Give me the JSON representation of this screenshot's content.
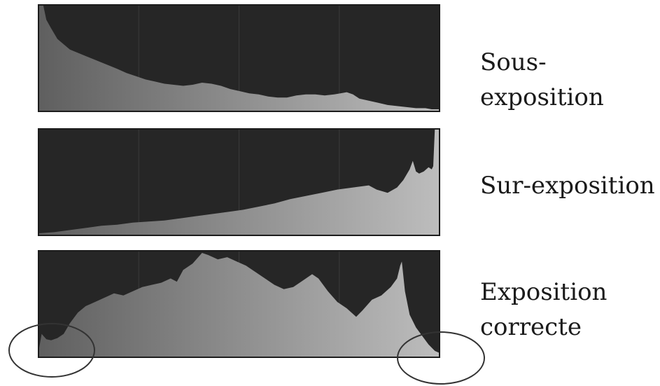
{
  "chart_data": [
    {
      "type": "area",
      "label": "Sous-exposition",
      "xlim": [
        0,
        255
      ],
      "ylim": [
        0,
        1
      ],
      "points": [
        [
          0,
          1.0
        ],
        [
          3,
          1.0
        ],
        [
          5,
          0.86
        ],
        [
          8,
          0.78
        ],
        [
          12,
          0.68
        ],
        [
          16,
          0.63
        ],
        [
          20,
          0.58
        ],
        [
          25,
          0.55
        ],
        [
          30,
          0.52
        ],
        [
          35,
          0.49
        ],
        [
          40,
          0.46
        ],
        [
          45,
          0.43
        ],
        [
          50,
          0.4
        ],
        [
          56,
          0.36
        ],
        [
          62,
          0.33
        ],
        [
          68,
          0.3
        ],
        [
          74,
          0.28
        ],
        [
          80,
          0.26
        ],
        [
          86,
          0.25
        ],
        [
          92,
          0.24
        ],
        [
          98,
          0.25
        ],
        [
          104,
          0.27
        ],
        [
          110,
          0.26
        ],
        [
          116,
          0.24
        ],
        [
          122,
          0.21
        ],
        [
          128,
          0.19
        ],
        [
          134,
          0.17
        ],
        [
          140,
          0.16
        ],
        [
          146,
          0.14
        ],
        [
          152,
          0.13
        ],
        [
          158,
          0.13
        ],
        [
          164,
          0.15
        ],
        [
          170,
          0.16
        ],
        [
          176,
          0.16
        ],
        [
          182,
          0.15
        ],
        [
          188,
          0.16
        ],
        [
          192,
          0.17
        ],
        [
          196,
          0.18
        ],
        [
          200,
          0.16
        ],
        [
          204,
          0.12
        ],
        [
          210,
          0.1
        ],
        [
          216,
          0.08
        ],
        [
          222,
          0.06
        ],
        [
          228,
          0.05
        ],
        [
          234,
          0.04
        ],
        [
          240,
          0.03
        ],
        [
          246,
          0.03
        ],
        [
          250,
          0.02
        ],
        [
          255,
          0.02
        ]
      ]
    },
    {
      "type": "area",
      "label": "Sur-exposition",
      "xlim": [
        0,
        255
      ],
      "ylim": [
        0,
        1
      ],
      "points": [
        [
          0,
          0.02
        ],
        [
          10,
          0.03
        ],
        [
          20,
          0.05
        ],
        [
          30,
          0.07
        ],
        [
          40,
          0.09
        ],
        [
          50,
          0.1
        ],
        [
          60,
          0.12
        ],
        [
          70,
          0.13
        ],
        [
          80,
          0.14
        ],
        [
          90,
          0.16
        ],
        [
          100,
          0.18
        ],
        [
          110,
          0.2
        ],
        [
          120,
          0.22
        ],
        [
          130,
          0.24
        ],
        [
          140,
          0.27
        ],
        [
          150,
          0.3
        ],
        [
          160,
          0.34
        ],
        [
          170,
          0.37
        ],
        [
          180,
          0.4
        ],
        [
          190,
          0.43
        ],
        [
          200,
          0.45
        ],
        [
          210,
          0.47
        ],
        [
          215,
          0.43
        ],
        [
          222,
          0.4
        ],
        [
          228,
          0.45
        ],
        [
          232,
          0.52
        ],
        [
          236,
          0.62
        ],
        [
          238,
          0.7
        ],
        [
          240,
          0.6
        ],
        [
          242,
          0.58
        ],
        [
          245,
          0.6
        ],
        [
          248,
          0.64
        ],
        [
          250,
          0.62
        ],
        [
          251,
          0.65
        ],
        [
          252,
          1.0
        ],
        [
          255,
          1.0
        ]
      ]
    },
    {
      "type": "area",
      "label": "Exposition correcte",
      "xlim": [
        0,
        255
      ],
      "ylim": [
        0,
        1
      ],
      "points": [
        [
          0,
          0.05
        ],
        [
          2,
          0.22
        ],
        [
          5,
          0.17
        ],
        [
          8,
          0.16
        ],
        [
          12,
          0.18
        ],
        [
          16,
          0.22
        ],
        [
          20,
          0.32
        ],
        [
          25,
          0.42
        ],
        [
          30,
          0.48
        ],
        [
          36,
          0.52
        ],
        [
          42,
          0.56
        ],
        [
          48,
          0.6
        ],
        [
          54,
          0.58
        ],
        [
          60,
          0.62
        ],
        [
          66,
          0.66
        ],
        [
          72,
          0.68
        ],
        [
          78,
          0.7
        ],
        [
          84,
          0.74
        ],
        [
          88,
          0.71
        ],
        [
          92,
          0.82
        ],
        [
          98,
          0.88
        ],
        [
          104,
          0.98
        ],
        [
          108,
          0.96
        ],
        [
          114,
          0.92
        ],
        [
          120,
          0.94
        ],
        [
          126,
          0.9
        ],
        [
          132,
          0.86
        ],
        [
          138,
          0.8
        ],
        [
          144,
          0.74
        ],
        [
          150,
          0.68
        ],
        [
          156,
          0.64
        ],
        [
          162,
          0.66
        ],
        [
          168,
          0.72
        ],
        [
          174,
          0.78
        ],
        [
          178,
          0.74
        ],
        [
          184,
          0.62
        ],
        [
          190,
          0.52
        ],
        [
          196,
          0.46
        ],
        [
          202,
          0.38
        ],
        [
          206,
          0.44
        ],
        [
          212,
          0.54
        ],
        [
          218,
          0.58
        ],
        [
          224,
          0.66
        ],
        [
          228,
          0.74
        ],
        [
          230,
          0.86
        ],
        [
          231,
          0.9
        ],
        [
          233,
          0.62
        ],
        [
          236,
          0.4
        ],
        [
          240,
          0.28
        ],
        [
          244,
          0.2
        ],
        [
          248,
          0.12
        ],
        [
          252,
          0.06
        ],
        [
          255,
          0.04
        ]
      ]
    }
  ],
  "annotations": {
    "circles": [
      {
        "shape": "ellipse",
        "marks": "left edge of Exposition correcte histogram"
      },
      {
        "shape": "ellipse",
        "marks": "right edge of Exposition correcte histogram"
      }
    ]
  },
  "colors": {
    "background": "#262626",
    "fill_dark": "#5f5f5f",
    "fill_light": "#bdbdbd",
    "separator": "#3a3a3a",
    "circle": "#333333"
  }
}
